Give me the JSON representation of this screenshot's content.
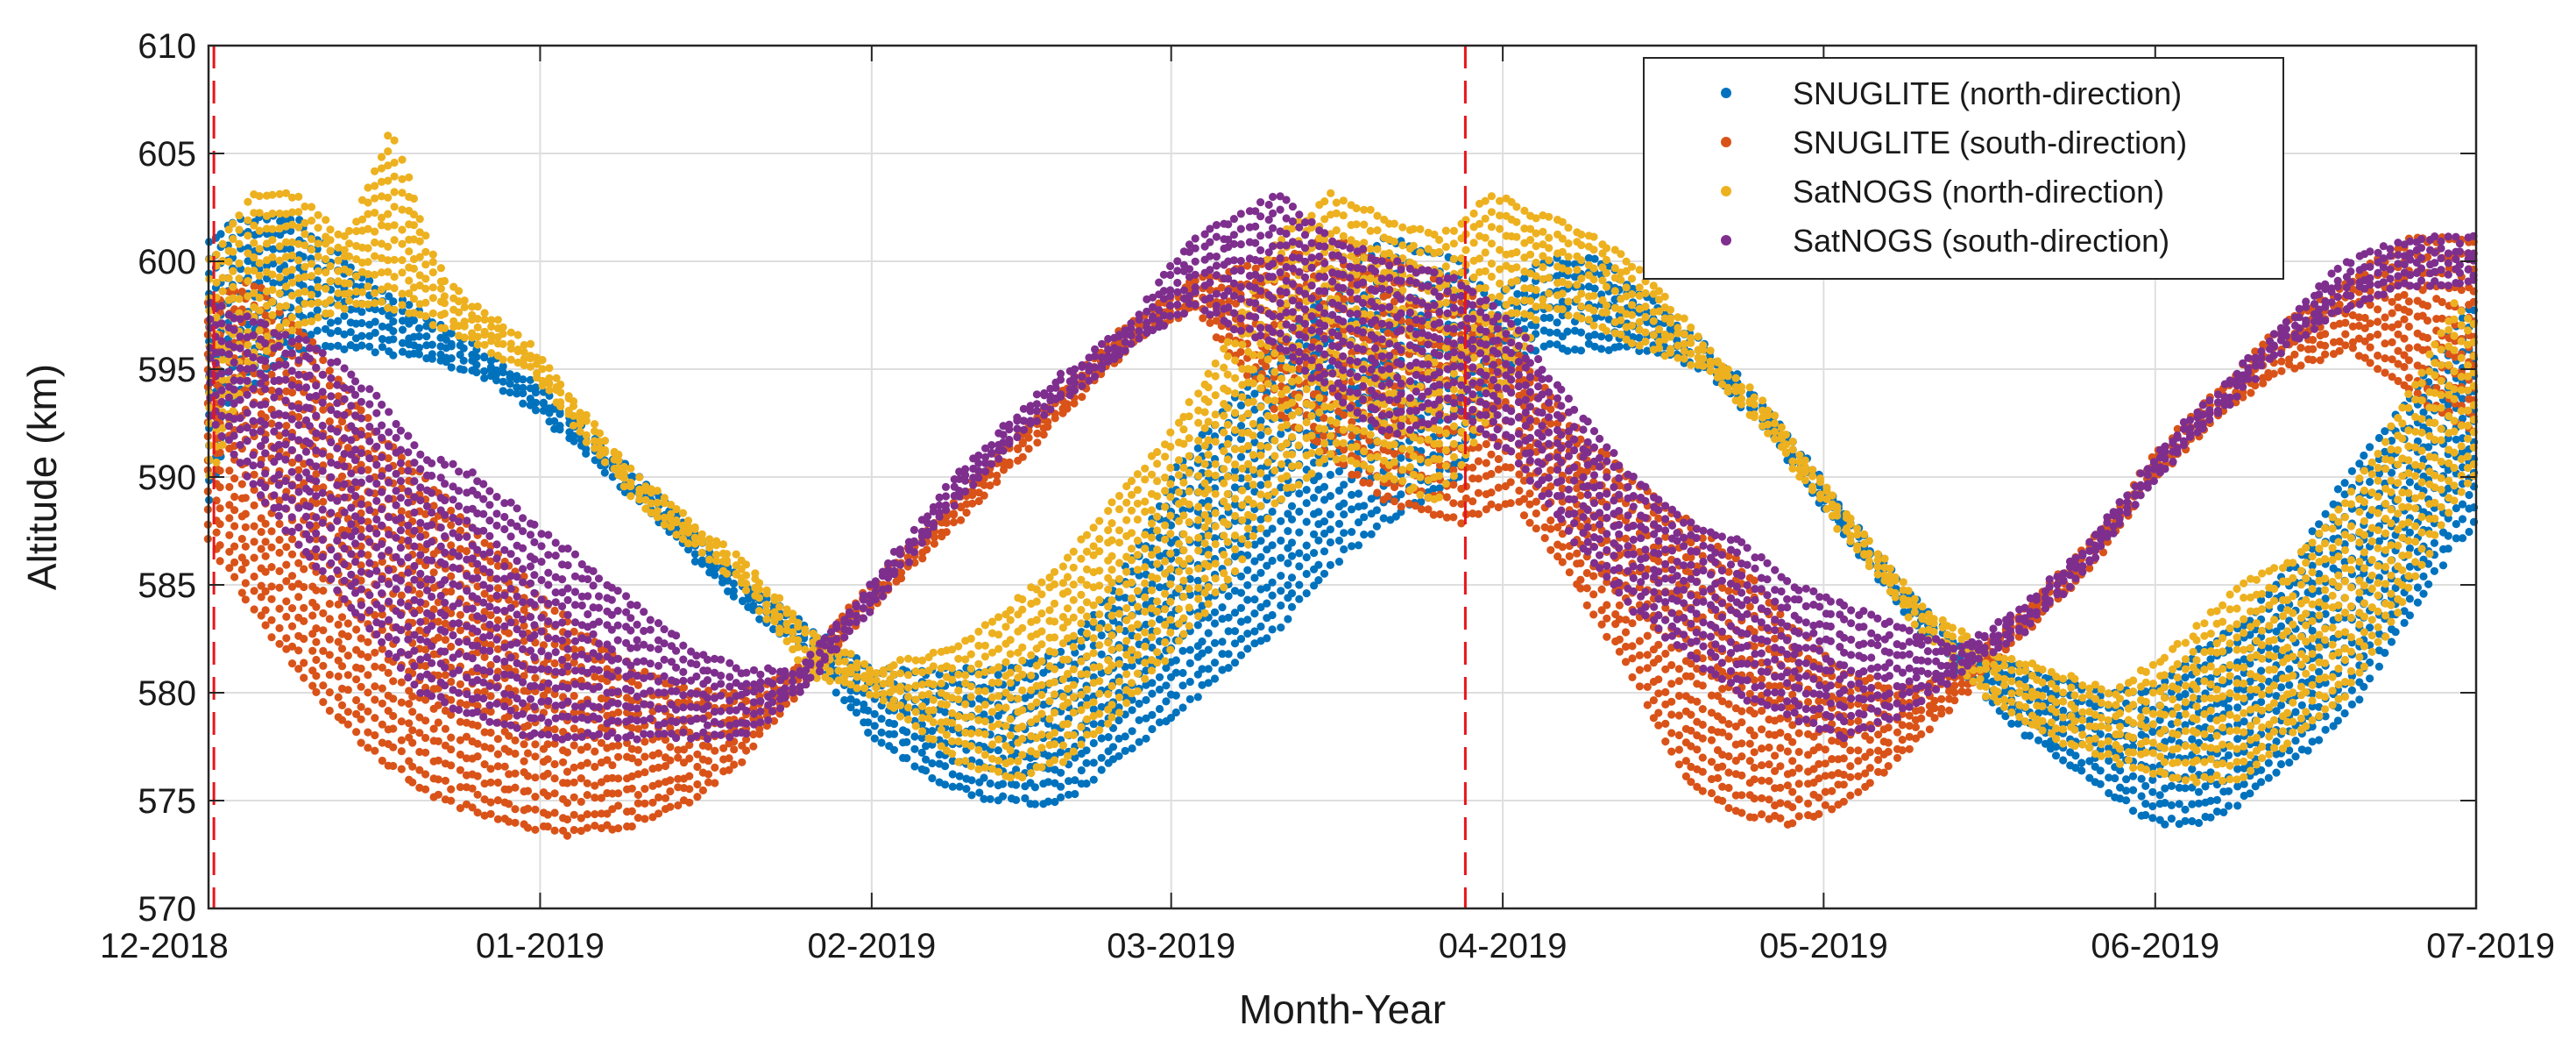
{
  "chart_data": {
    "type": "scatter",
    "title": "",
    "xlabel": "Month-Year",
    "ylabel": "Altitude (km)",
    "ylim": [
      570,
      610
    ],
    "yticks": [
      570,
      575,
      580,
      585,
      590,
      595,
      600,
      605,
      610
    ],
    "xlim_days": [
      0,
      212
    ],
    "x_unit": "days since 2018-12-01",
    "xticks": [
      {
        "day": 0,
        "label": "12-2018"
      },
      {
        "day": 31,
        "label": "01-2019"
      },
      {
        "day": 62,
        "label": "02-2019"
      },
      {
        "day": 90,
        "label": "03-2019"
      },
      {
        "day": 121,
        "label": "04-2019"
      },
      {
        "day": 151,
        "label": "05-2019"
      },
      {
        "day": 182,
        "label": "06-2019"
      },
      {
        "day": 212,
        "label": "07-2019"
      }
    ],
    "grid": true,
    "legend_position": "top-right",
    "vlines": [
      {
        "day": 0.5,
        "color": "#e8141b",
        "style": "dashed"
      },
      {
        "day": 117.5,
        "color": "#e8141b",
        "style": "dashed"
      }
    ],
    "series": [
      {
        "name": "SNUGLITE (north-direction)",
        "color": "#0072bd",
        "envelope": [
          {
            "day": 0,
            "low": 589,
            "high": 601
          },
          {
            "day": 3,
            "low": 594,
            "high": 602
          },
          {
            "day": 8,
            "low": 596,
            "high": 602
          },
          {
            "day": 15,
            "low": 596,
            "high": 599
          },
          {
            "day": 25,
            "low": 595,
            "high": 596
          },
          {
            "day": 31,
            "low": 593,
            "high": 594
          },
          {
            "day": 40,
            "low": 589,
            "high": 590
          },
          {
            "day": 50,
            "low": 584,
            "high": 585
          },
          {
            "day": 56,
            "low": 582,
            "high": 583
          },
          {
            "day": 62,
            "low": 578,
            "high": 581
          },
          {
            "day": 70,
            "low": 575.5,
            "high": 581
          },
          {
            "day": 75,
            "low": 575,
            "high": 581
          },
          {
            "day": 80,
            "low": 575,
            "high": 582
          },
          {
            "day": 85,
            "low": 577,
            "high": 585
          },
          {
            "day": 90,
            "low": 579,
            "high": 590
          },
          {
            "day": 95,
            "low": 581,
            "high": 593
          },
          {
            "day": 100,
            "low": 583,
            "high": 596
          },
          {
            "day": 105,
            "low": 586,
            "high": 599
          },
          {
            "day": 110,
            "low": 588,
            "high": 601
          },
          {
            "day": 117,
            "low": 590,
            "high": 600
          },
          {
            "day": 120,
            "low": 595,
            "high": 598
          },
          {
            "day": 125,
            "low": 596,
            "high": 600
          },
          {
            "day": 130,
            "low": 596,
            "high": 600
          },
          {
            "day": 135,
            "low": 596,
            "high": 598
          },
          {
            "day": 140,
            "low": 595,
            "high": 596
          },
          {
            "day": 146,
            "low": 592,
            "high": 593
          },
          {
            "day": 152,
            "low": 588,
            "high": 589
          },
          {
            "day": 158,
            "low": 584,
            "high": 585
          },
          {
            "day": 164,
            "low": 581,
            "high": 582
          },
          {
            "day": 170,
            "low": 578,
            "high": 581
          },
          {
            "day": 176,
            "low": 576,
            "high": 580
          },
          {
            "day": 182,
            "low": 574,
            "high": 580
          },
          {
            "day": 186,
            "low": 574,
            "high": 582
          },
          {
            "day": 190,
            "low": 575,
            "high": 583
          },
          {
            "day": 195,
            "low": 577,
            "high": 586
          },
          {
            "day": 200,
            "low": 579,
            "high": 590
          },
          {
            "day": 205,
            "low": 583,
            "high": 593
          },
          {
            "day": 210,
            "low": 587,
            "high": 597
          },
          {
            "day": 212,
            "low": 588,
            "high": 598
          }
        ]
      },
      {
        "name": "SNUGLITE (south-direction)",
        "color": "#d95319",
        "envelope": [
          {
            "day": 0,
            "low": 587,
            "high": 598
          },
          {
            "day": 4,
            "low": 584,
            "high": 599
          },
          {
            "day": 10,
            "low": 580,
            "high": 596
          },
          {
            "day": 16,
            "low": 577,
            "high": 592
          },
          {
            "day": 22,
            "low": 575,
            "high": 589
          },
          {
            "day": 28,
            "low": 574,
            "high": 586
          },
          {
            "day": 34,
            "low": 573.5,
            "high": 583
          },
          {
            "day": 40,
            "low": 574,
            "high": 581
          },
          {
            "day": 45,
            "low": 575,
            "high": 580
          },
          {
            "day": 50,
            "low": 577,
            "high": 580
          },
          {
            "day": 55,
            "low": 580,
            "high": 581
          },
          {
            "day": 62,
            "low": 584,
            "high": 585
          },
          {
            "day": 70,
            "low": 588,
            "high": 589
          },
          {
            "day": 78,
            "low": 592,
            "high": 593
          },
          {
            "day": 86,
            "low": 596,
            "high": 597
          },
          {
            "day": 92,
            "low": 598,
            "high": 599
          },
          {
            "day": 100,
            "low": 593,
            "high": 600
          },
          {
            "day": 105,
            "low": 591,
            "high": 601
          },
          {
            "day": 110,
            "low": 589,
            "high": 600
          },
          {
            "day": 117,
            "low": 588,
            "high": 599
          },
          {
            "day": 122,
            "low": 589,
            "high": 596
          },
          {
            "day": 128,
            "low": 585,
            "high": 592
          },
          {
            "day": 133,
            "low": 581,
            "high": 590
          },
          {
            "day": 138,
            "low": 576,
            "high": 588
          },
          {
            "day": 143,
            "low": 574.5,
            "high": 586
          },
          {
            "day": 148,
            "low": 574,
            "high": 583
          },
          {
            "day": 153,
            "low": 575,
            "high": 581
          },
          {
            "day": 158,
            "low": 577,
            "high": 580
          },
          {
            "day": 164,
            "low": 580,
            "high": 581
          },
          {
            "day": 170,
            "low": 583,
            "high": 584
          },
          {
            "day": 176,
            "low": 586,
            "high": 587
          },
          {
            "day": 182,
            "low": 590,
            "high": 591
          },
          {
            "day": 188,
            "low": 593,
            "high": 594
          },
          {
            "day": 194,
            "low": 595,
            "high": 597
          },
          {
            "day": 200,
            "low": 596,
            "high": 599
          },
          {
            "day": 206,
            "low": 594,
            "high": 601
          },
          {
            "day": 212,
            "low": 592,
            "high": 601
          }
        ]
      },
      {
        "name": "SatNOGS (north-direction)",
        "color": "#edb120",
        "envelope": [
          {
            "day": 0,
            "low": 590,
            "high": 600
          },
          {
            "day": 4,
            "low": 595,
            "high": 603
          },
          {
            "day": 8,
            "low": 597,
            "high": 603
          },
          {
            "day": 13,
            "low": 598,
            "high": 601
          },
          {
            "day": 17,
            "low": 598,
            "high": 606
          },
          {
            "day": 22,
            "low": 597,
            "high": 599
          },
          {
            "day": 30,
            "low": 595,
            "high": 596
          },
          {
            "day": 40,
            "low": 589,
            "high": 590
          },
          {
            "day": 50,
            "low": 585,
            "high": 586
          },
          {
            "day": 56,
            "low": 581,
            "high": 583
          },
          {
            "day": 62,
            "low": 580,
            "high": 581
          },
          {
            "day": 70,
            "low": 577,
            "high": 582
          },
          {
            "day": 75,
            "low": 576,
            "high": 584
          },
          {
            "day": 80,
            "low": 577,
            "high": 586
          },
          {
            "day": 85,
            "low": 579,
            "high": 589
          },
          {
            "day": 90,
            "low": 582,
            "high": 592
          },
          {
            "day": 95,
            "low": 585,
            "high": 596
          },
          {
            "day": 100,
            "low": 589,
            "high": 601
          },
          {
            "day": 105,
            "low": 591,
            "high": 603
          },
          {
            "day": 110,
            "low": 590,
            "high": 602
          },
          {
            "day": 115,
            "low": 589,
            "high": 601
          },
          {
            "day": 120,
            "low": 593,
            "high": 603
          },
          {
            "day": 125,
            "low": 598,
            "high": 602
          },
          {
            "day": 130,
            "low": 597,
            "high": 601
          },
          {
            "day": 135,
            "low": 596,
            "high": 599
          },
          {
            "day": 140,
            "low": 595,
            "high": 596
          },
          {
            "day": 146,
            "low": 592,
            "high": 593
          },
          {
            "day": 152,
            "low": 588,
            "high": 589
          },
          {
            "day": 160,
            "low": 583,
            "high": 584
          },
          {
            "day": 166,
            "low": 580,
            "high": 582
          },
          {
            "day": 172,
            "low": 578,
            "high": 581
          },
          {
            "day": 178,
            "low": 577,
            "high": 580
          },
          {
            "day": 184,
            "low": 576,
            "high": 582
          },
          {
            "day": 190,
            "low": 576,
            "high": 585
          },
          {
            "day": 195,
            "low": 578,
            "high": 586
          },
          {
            "day": 200,
            "low": 580,
            "high": 589
          },
          {
            "day": 205,
            "low": 584,
            "high": 593
          },
          {
            "day": 210,
            "low": 589,
            "high": 598
          },
          {
            "day": 212,
            "low": 590,
            "high": 597
          }
        ]
      },
      {
        "name": "SatNOGS (south-direction)",
        "color": "#7e2f8e",
        "envelope": [
          {
            "day": 0,
            "low": 593,
            "high": 598
          },
          {
            "day": 5,
            "low": 589,
            "high": 597
          },
          {
            "day": 10,
            "low": 586,
            "high": 596
          },
          {
            "day": 15,
            "low": 583,
            "high": 594
          },
          {
            "day": 20,
            "low": 580,
            "high": 591
          },
          {
            "day": 25,
            "low": 579,
            "high": 590
          },
          {
            "day": 30,
            "low": 578,
            "high": 588
          },
          {
            "day": 35,
            "low": 578,
            "high": 586
          },
          {
            "day": 40,
            "low": 578,
            "high": 584
          },
          {
            "day": 45,
            "low": 578,
            "high": 582
          },
          {
            "day": 50,
            "low": 578,
            "high": 581
          },
          {
            "day": 55,
            "low": 580,
            "high": 581
          },
          {
            "day": 62,
            "low": 584,
            "high": 585
          },
          {
            "day": 70,
            "low": 589,
            "high": 590
          },
          {
            "day": 78,
            "low": 593,
            "high": 594
          },
          {
            "day": 86,
            "low": 596,
            "high": 597
          },
          {
            "day": 92,
            "low": 598,
            "high": 601
          },
          {
            "day": 100,
            "low": 596,
            "high": 603
          },
          {
            "day": 105,
            "low": 594,
            "high": 601
          },
          {
            "day": 110,
            "low": 592,
            "high": 600
          },
          {
            "day": 117,
            "low": 593,
            "high": 599
          },
          {
            "day": 122,
            "low": 591,
            "high": 597
          },
          {
            "day": 128,
            "low": 587,
            "high": 593
          },
          {
            "day": 133,
            "low": 584,
            "high": 590
          },
          {
            "day": 138,
            "low": 582,
            "high": 588
          },
          {
            "day": 143,
            "low": 580,
            "high": 587
          },
          {
            "day": 148,
            "low": 579,
            "high": 585
          },
          {
            "day": 153,
            "low": 578,
            "high": 584
          },
          {
            "day": 158,
            "low": 579,
            "high": 583
          },
          {
            "day": 164,
            "low": 581,
            "high": 582
          },
          {
            "day": 170,
            "low": 583,
            "high": 584
          },
          {
            "day": 176,
            "low": 586,
            "high": 587
          },
          {
            "day": 182,
            "low": 590,
            "high": 591
          },
          {
            "day": 188,
            "low": 593,
            "high": 594
          },
          {
            "day": 194,
            "low": 596,
            "high": 597
          },
          {
            "day": 200,
            "low": 598,
            "high": 600
          },
          {
            "day": 206,
            "low": 599,
            "high": 601
          },
          {
            "day": 212,
            "low": 599,
            "high": 601
          }
        ]
      }
    ]
  }
}
